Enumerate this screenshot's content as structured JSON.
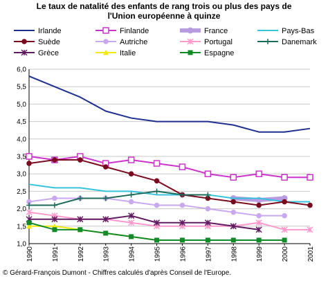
{
  "chart_data": {
    "type": "line",
    "title": [
      "Le taux de natalité des enfants de rang trois ou plus des pays de",
      "l'Union européenne à quinze"
    ],
    "x": [
      "1990",
      "1991",
      "1992",
      "1993",
      "1994",
      "1995",
      "1996",
      "1997",
      "1998",
      "1999",
      "2000",
      "2001"
    ],
    "ylim": [
      1.0,
      6.0
    ],
    "yticks": [
      "1,0",
      "1,5",
      "2,0",
      "2,5",
      "3,0",
      "3,5",
      "4,0",
      "4,5",
      "5,0",
      "5,5",
      "6,0"
    ],
    "grid": "horizontal",
    "legend_position": "top",
    "series": [
      {
        "name": "Irlande",
        "color": "#1f2f8f",
        "marker": "none",
        "values": [
          5.8,
          5.5,
          5.2,
          4.8,
          4.6,
          4.5,
          4.5,
          4.5,
          4.4,
          4.2,
          4.2,
          4.3
        ]
      },
      {
        "name": "Finlande",
        "color": "#cc33cc",
        "marker": "square-open",
        "values": [
          3.5,
          3.4,
          3.5,
          3.3,
          3.4,
          3.3,
          3.2,
          3.0,
          2.9,
          3.0,
          2.9,
          2.9
        ]
      },
      {
        "name": "France",
        "color": "#b89be0",
        "marker": "thick",
        "values": [
          null,
          null,
          null,
          null,
          null,
          null,
          null,
          null,
          2.3,
          2.25,
          2.3,
          null
        ]
      },
      {
        "name": "Pays-Bas",
        "color": "#33c3dd",
        "marker": "none",
        "values": [
          2.7,
          2.6,
          2.6,
          2.5,
          2.5,
          2.4,
          2.4,
          2.4,
          2.3,
          2.3,
          2.2,
          2.2
        ]
      },
      {
        "name": "Suède",
        "color": "#7a0a1e",
        "marker": "circle",
        "values": [
          3.3,
          3.4,
          3.4,
          3.2,
          3.0,
          2.8,
          2.4,
          2.3,
          2.2,
          2.1,
          2.2,
          2.1
        ]
      },
      {
        "name": "Autriche",
        "color": "#c9a8ef",
        "marker": "circle-light",
        "values": [
          2.2,
          2.3,
          2.3,
          2.3,
          2.2,
          2.1,
          2.1,
          2.0,
          1.9,
          1.8,
          1.8,
          null
        ]
      },
      {
        "name": "Portugal",
        "color": "#ff99cc",
        "marker": "star-light",
        "values": [
          1.9,
          1.8,
          1.7,
          1.7,
          1.6,
          1.5,
          1.5,
          1.5,
          1.5,
          1.6,
          1.4,
          1.4
        ]
      },
      {
        "name": "Danemark",
        "color": "#1c6a5a",
        "marker": "plus",
        "values": [
          2.1,
          2.1,
          2.3,
          2.3,
          2.4,
          2.5,
          2.4,
          2.4,
          null,
          null,
          null,
          null
        ]
      },
      {
        "name": "Grèce",
        "color": "#601a60",
        "marker": "star",
        "values": [
          1.7,
          1.7,
          1.7,
          1.7,
          1.8,
          1.6,
          1.6,
          1.6,
          1.5,
          1.4,
          null,
          null
        ]
      },
      {
        "name": "Italie",
        "color": "#f2ea0a",
        "marker": "triangle",
        "values": [
          1.5,
          1.5,
          1.4,
          1.3,
          1.2,
          1.1,
          1.1,
          1.1,
          null,
          null,
          null,
          null
        ]
      },
      {
        "name": "Espagne",
        "color": "#118a2a",
        "marker": "square",
        "values": [
          1.6,
          1.4,
          1.4,
          1.3,
          1.2,
          1.1,
          1.1,
          1.1,
          1.1,
          1.1,
          1.1,
          null
        ]
      }
    ]
  },
  "footer": "© Gérard-François Dumont - Chiffres calculés d'après Conseil de l'Europe."
}
